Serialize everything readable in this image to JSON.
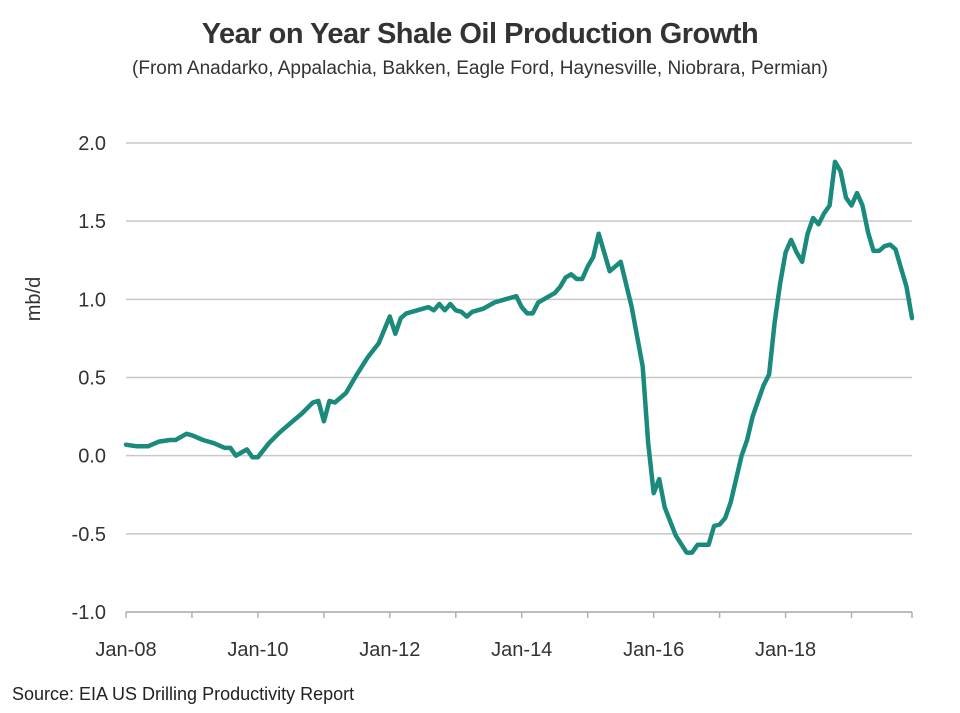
{
  "chart_data": {
    "type": "line",
    "title": "Year on Year Shale Oil Production Growth",
    "subtitle": "(From Anadarko, Appalachia, Bakken, Eagle Ford, Haynesville, Niobrara, Permian)",
    "ylabel": "mb/d",
    "xlabel": "",
    "source": "Source: EIA US Drilling Productivity Report",
    "ylim": [
      -1.0,
      2.0
    ],
    "y_ticks": [
      "2.0",
      "1.5",
      "1.0",
      "0.5",
      "0.0",
      "-0.5",
      "-1.0"
    ],
    "y_tick_values": [
      2.0,
      1.5,
      1.0,
      0.5,
      0.0,
      -0.5,
      -1.0
    ],
    "x_ticks": [
      "Jan-08",
      "Jan-10",
      "Jan-12",
      "Jan-14",
      "Jan-16",
      "Jan-18"
    ],
    "x_tick_dates": [
      "2008-01",
      "2010-01",
      "2012-01",
      "2014-01",
      "2016-01",
      "2018-01"
    ],
    "xlim": [
      "2008-01",
      "2019-12"
    ],
    "grid": true,
    "line_color": "#1a8a7d",
    "series": [
      {
        "x": [
          "2008-01",
          "2008-03",
          "2008-05",
          "2008-07",
          "2008-09",
          "2008-10",
          "2008-12",
          "2009-01",
          "2009-03",
          "2009-05",
          "2009-07",
          "2009-08",
          "2009-09",
          "2009-10",
          "2009-11",
          "2009-12",
          "2010-01",
          "2010-03",
          "2010-05",
          "2010-07",
          "2010-09",
          "2010-11",
          "2010-12",
          "2011-01",
          "2011-02",
          "2011-03",
          "2011-05",
          "2011-07",
          "2011-09",
          "2011-11",
          "2012-01",
          "2012-02",
          "2012-03",
          "2012-04",
          "2012-06",
          "2012-08",
          "2012-09",
          "2012-10",
          "2012-11",
          "2012-12",
          "2013-01",
          "2013-02",
          "2013-03",
          "2013-04",
          "2013-06",
          "2013-08",
          "2013-10",
          "2013-12",
          "2014-01",
          "2014-02",
          "2014-03",
          "2014-04",
          "2014-06",
          "2014-07",
          "2014-08",
          "2014-09",
          "2014-10",
          "2014-11",
          "2014-12",
          "2015-01",
          "2015-02",
          "2015-03",
          "2015-05",
          "2015-07",
          "2015-09",
          "2015-11",
          "2015-12",
          "2016-01",
          "2016-02",
          "2016-03",
          "2016-05",
          "2016-07",
          "2016-08",
          "2016-09",
          "2016-10",
          "2016-11",
          "2016-12",
          "2017-01",
          "2017-02",
          "2017-03",
          "2017-05",
          "2017-06",
          "2017-07",
          "2017-08",
          "2017-09",
          "2017-10",
          "2017-11",
          "2017-12",
          "2018-01",
          "2018-02",
          "2018-03",
          "2018-04",
          "2018-05",
          "2018-06",
          "2018-07",
          "2018-08",
          "2018-09",
          "2018-10",
          "2018-11",
          "2018-12",
          "2019-01",
          "2019-02",
          "2019-03",
          "2019-04",
          "2019-05",
          "2019-06",
          "2019-07",
          "2019-08",
          "2019-09",
          "2019-10",
          "2019-11",
          "2019-12"
        ],
        "values": [
          0.07,
          0.06,
          0.06,
          0.09,
          0.1,
          0.1,
          0.14,
          0.13,
          0.1,
          0.08,
          0.05,
          0.05,
          0.0,
          0.02,
          0.04,
          -0.01,
          -0.01,
          0.08,
          0.15,
          0.21,
          0.27,
          0.34,
          0.35,
          0.22,
          0.35,
          0.34,
          0.4,
          0.52,
          0.63,
          0.72,
          0.89,
          0.78,
          0.88,
          0.91,
          0.93,
          0.95,
          0.93,
          0.97,
          0.93,
          0.97,
          0.93,
          0.92,
          0.89,
          0.92,
          0.94,
          0.98,
          1.0,
          1.02,
          0.95,
          0.91,
          0.91,
          0.98,
          1.02,
          1.04,
          1.08,
          1.14,
          1.16,
          1.13,
          1.13,
          1.21,
          1.27,
          1.42,
          1.18,
          1.24,
          0.95,
          0.57,
          0.08,
          -0.24,
          -0.15,
          -0.33,
          -0.51,
          -0.62,
          -0.62,
          -0.57,
          -0.57,
          -0.57,
          -0.45,
          -0.44,
          -0.4,
          -0.3,
          0.0,
          0.1,
          0.25,
          0.35,
          0.45,
          0.52,
          0.85,
          1.1,
          1.3,
          1.38,
          1.3,
          1.24,
          1.42,
          1.52,
          1.48,
          1.55,
          1.6,
          1.88,
          1.82,
          1.65,
          1.6,
          1.68,
          1.6,
          1.43,
          1.31,
          1.31,
          1.34,
          1.35,
          1.32,
          1.2,
          1.08,
          0.88
        ]
      }
    ]
  }
}
